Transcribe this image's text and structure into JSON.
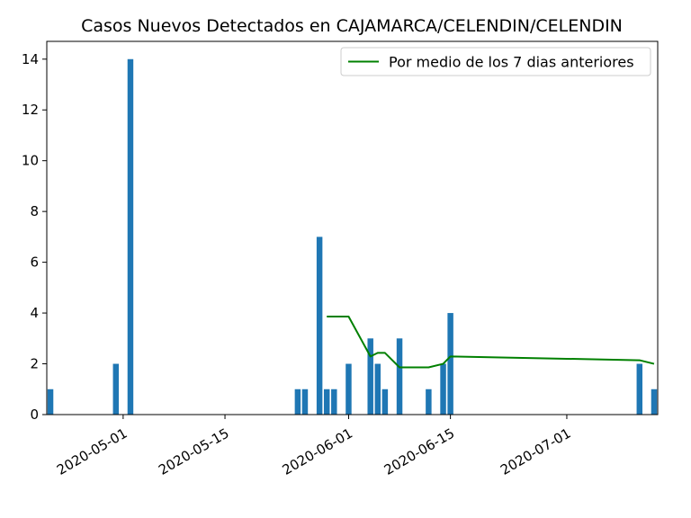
{
  "chart_data": {
    "type": "bar",
    "title": "Casos Nuevos Detectados en CAJAMARCA/CELENDIN/CELENDIN",
    "xlabel": "",
    "ylabel": "",
    "xlim": [
      "2020-04-21",
      "2020-07-13"
    ],
    "ylim": [
      0,
      14.7
    ],
    "y_ticks": [
      0,
      2,
      4,
      6,
      8,
      10,
      12,
      14
    ],
    "x_ticks": [
      "2020-05-01",
      "2020-05-15",
      "2020-06-01",
      "2020-06-15",
      "2020-07-01"
    ],
    "bar_color": "#1f77b4",
    "bars": [
      {
        "x": "2020-04-21",
        "y": 1
      },
      {
        "x": "2020-04-30",
        "y": 2
      },
      {
        "x": "2020-05-02",
        "y": 14
      },
      {
        "x": "2020-05-25",
        "y": 1
      },
      {
        "x": "2020-05-26",
        "y": 1
      },
      {
        "x": "2020-05-28",
        "y": 7
      },
      {
        "x": "2020-05-29",
        "y": 1
      },
      {
        "x": "2020-05-30",
        "y": 1
      },
      {
        "x": "2020-06-01",
        "y": 2
      },
      {
        "x": "2020-06-04",
        "y": 3
      },
      {
        "x": "2020-06-05",
        "y": 2
      },
      {
        "x": "2020-06-06",
        "y": 1
      },
      {
        "x": "2020-06-08",
        "y": 3
      },
      {
        "x": "2020-06-12",
        "y": 1
      },
      {
        "x": "2020-06-14",
        "y": 2
      },
      {
        "x": "2020-06-15",
        "y": 4
      },
      {
        "x": "2020-07-11",
        "y": 2
      },
      {
        "x": "2020-07-13",
        "y": 1
      }
    ],
    "series": [
      {
        "name": "Por medio de los 7 dias anteriores",
        "color": "#008000",
        "points": [
          {
            "x": "2020-05-29",
            "y": 3.86
          },
          {
            "x": "2020-06-01",
            "y": 3.86
          },
          {
            "x": "2020-06-04",
            "y": 2.29
          },
          {
            "x": "2020-06-05",
            "y": 2.43
          },
          {
            "x": "2020-06-06",
            "y": 2.43
          },
          {
            "x": "2020-06-08",
            "y": 1.86
          },
          {
            "x": "2020-06-12",
            "y": 1.86
          },
          {
            "x": "2020-06-14",
            "y": 2.0
          },
          {
            "x": "2020-06-15",
            "y": 2.29
          },
          {
            "x": "2020-07-11",
            "y": 2.14
          },
          {
            "x": "2020-07-13",
            "y": 2.0
          }
        ]
      }
    ],
    "legend_position": "top-right",
    "grid": false
  }
}
